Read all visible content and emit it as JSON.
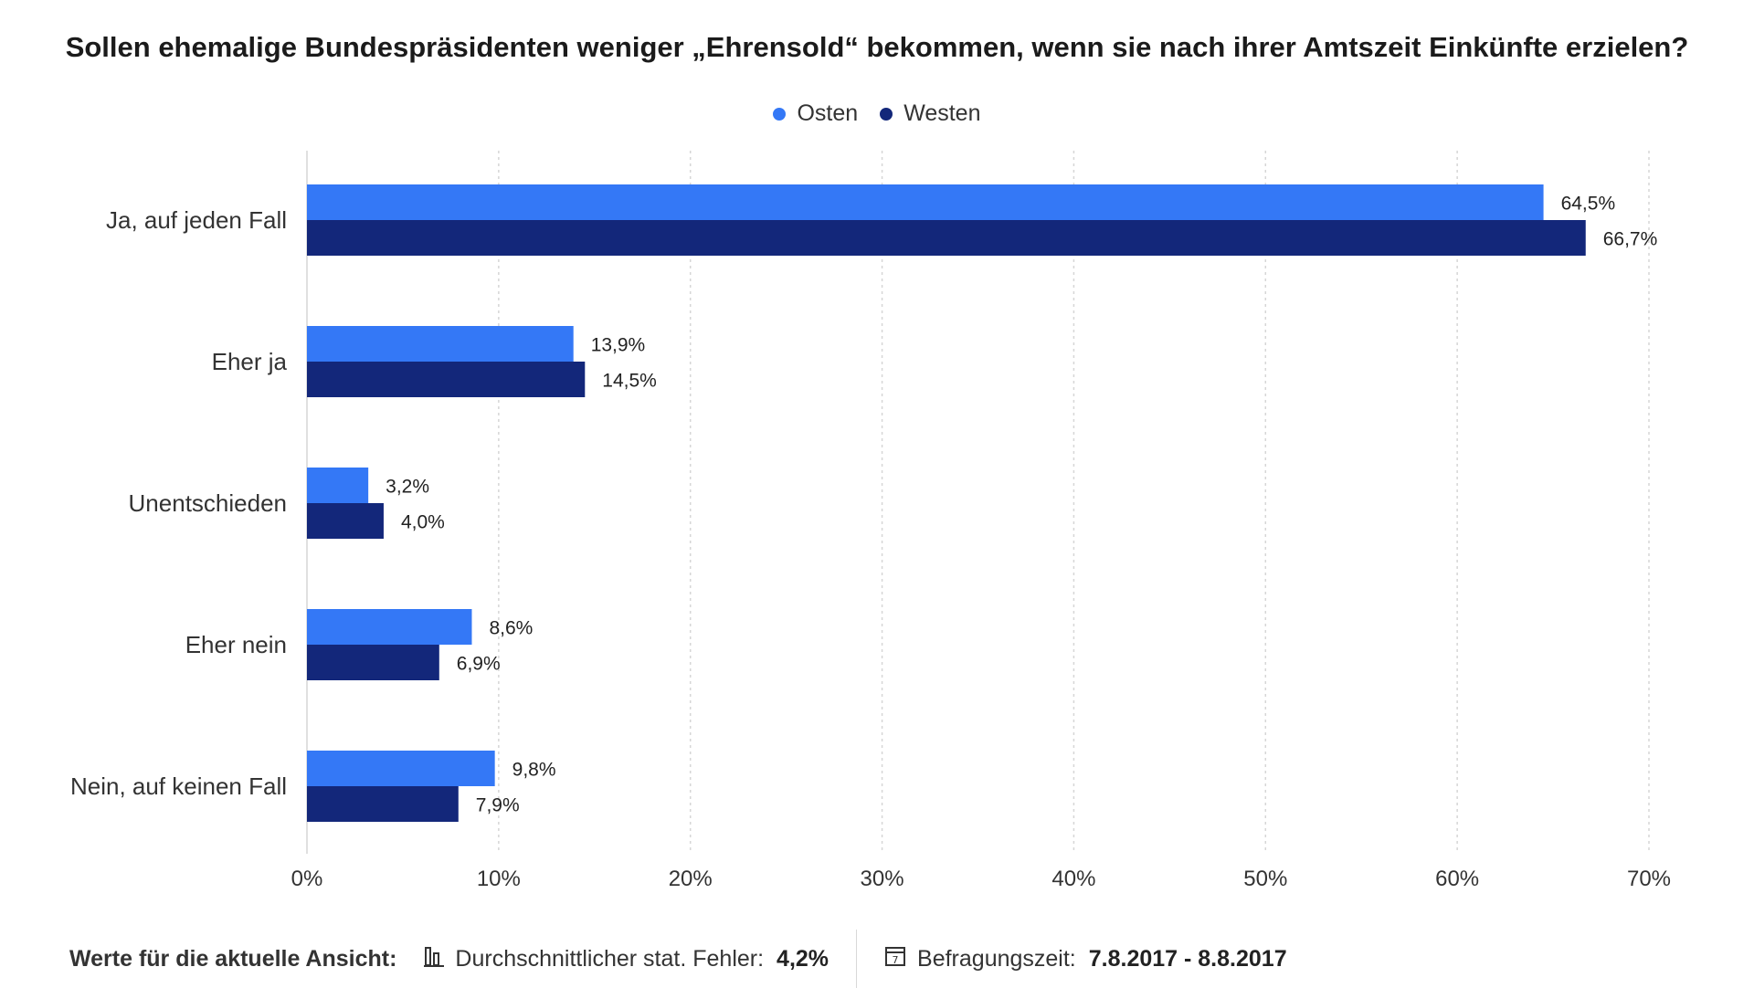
{
  "chart_data": {
    "type": "bar",
    "orientation": "horizontal",
    "title": "Sollen ehemalige Bundespräsidenten weniger „Ehrensold“ bekommen, wenn sie nach ihrer Amtszeit Einkünfte erzielen?",
    "categories": [
      "Ja, auf jeden Fall",
      "Eher ja",
      "Unentschieden",
      "Eher nein",
      "Nein, auf keinen Fall"
    ],
    "series": [
      {
        "name": "Osten",
        "color": "#3478f6",
        "values": [
          64.5,
          13.9,
          3.2,
          8.6,
          9.8
        ],
        "labels": [
          "64,5%",
          "13,9%",
          "3,2%",
          "8,6%",
          "9,8%"
        ]
      },
      {
        "name": "Westen",
        "color": "#13277a",
        "values": [
          66.7,
          14.5,
          4.0,
          6.9,
          7.9
        ],
        "labels": [
          "66,7%",
          "14,5%",
          "4,0%",
          "6,9%",
          "7,9%"
        ]
      }
    ],
    "xlim": [
      0,
      70
    ],
    "xticks": [
      0,
      10,
      20,
      30,
      40,
      50,
      60,
      70
    ],
    "xtick_labels": [
      "0%",
      "10%",
      "20%",
      "30%",
      "40%",
      "50%",
      "60%",
      "70%"
    ],
    "grid": true,
    "legend_position": "top-center"
  },
  "footer": {
    "lead": "Werte für die aktuelle Ansicht:",
    "error_label": "Durchschnittlicher stat. Fehler:",
    "error_value": "4,2%",
    "period_label": "Befragungszeit:",
    "period_value": "7.8.2017 - 8.8.2017",
    "error_icon": "bar-chart-icon",
    "period_icon": "calendar-icon"
  }
}
